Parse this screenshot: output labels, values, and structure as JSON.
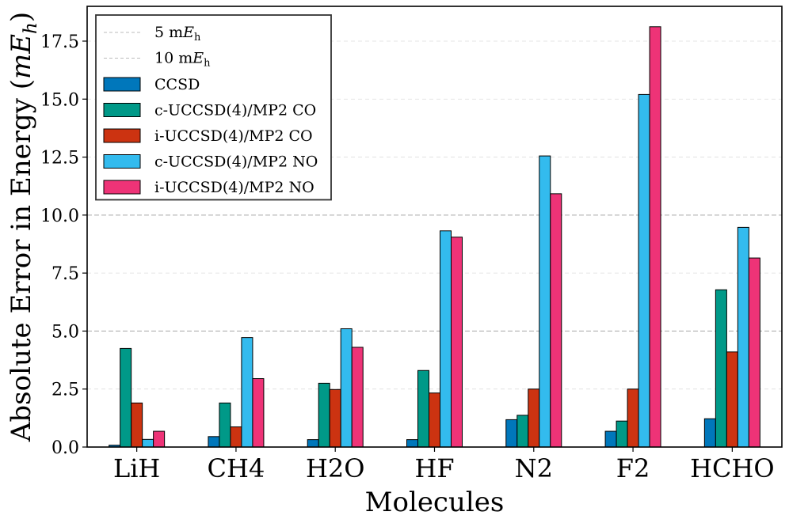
{
  "chart_data": {
    "type": "bar",
    "xlabel": "Molecules",
    "ylabel": "Absolute Error in Energy (mE_h)",
    "ylabel_parts": {
      "main": "Absolute Error in Energy (",
      "italic": "mE",
      "sub": "h",
      "close": ")"
    },
    "categories": [
      "LiH",
      "CH4",
      "H2O",
      "HF",
      "N2",
      "F2",
      "HCHO"
    ],
    "ylim": [
      0,
      19
    ],
    "yticks": [
      "0.0",
      "2.5",
      "5.0",
      "7.5",
      "10.0",
      "12.5",
      "15.0",
      "17.5"
    ],
    "ytick_values": [
      0,
      2.5,
      5,
      7.5,
      10,
      12.5,
      15,
      17.5
    ],
    "grid": true,
    "legend_position": "upper-left",
    "reference_lines": [
      {
        "value": 5,
        "label_prefix": "5 m",
        "label_italic": "E",
        "label_sub": "h"
      },
      {
        "value": 10,
        "label_prefix": "10 m",
        "label_italic": "E",
        "label_sub": "h"
      }
    ],
    "series": [
      {
        "name": "CCSD",
        "color": "#0077bb",
        "values": [
          0.08,
          0.45,
          0.32,
          0.32,
          1.18,
          0.68,
          1.22
        ]
      },
      {
        "name": "c-UCCSD(4)/MP2 CO",
        "color": "#009988",
        "values": [
          4.25,
          1.9,
          2.75,
          3.3,
          1.37,
          1.12,
          6.78
        ]
      },
      {
        "name": "i-UCCSD(4)/MP2 CO",
        "color": "#cc3311",
        "values": [
          1.9,
          0.87,
          2.48,
          2.33,
          2.5,
          2.5,
          4.1
        ]
      },
      {
        "name": "c-UCCSD(4)/MP2 NO",
        "color": "#33bbee",
        "values": [
          0.33,
          4.72,
          5.1,
          9.32,
          12.55,
          15.2,
          9.47
        ]
      },
      {
        "name": "i-UCCSD(4)/MP2 NO",
        "color": "#ee3377",
        "values": [
          0.68,
          2.95,
          4.3,
          9.05,
          10.92,
          18.12,
          8.15
        ]
      }
    ]
  }
}
